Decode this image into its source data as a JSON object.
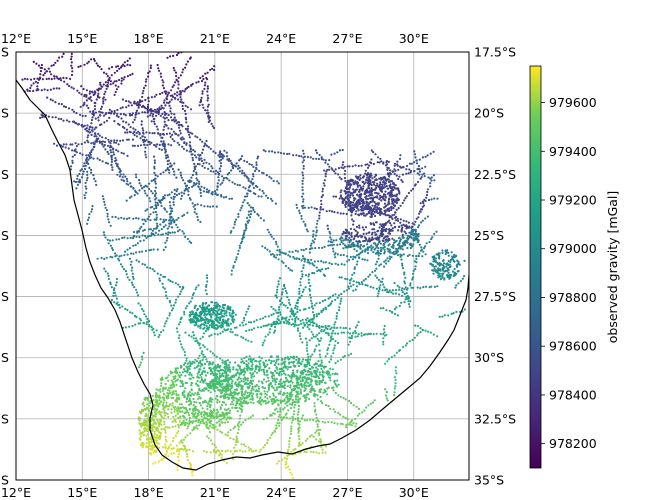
{
  "map": {
    "lon_range": [
      12,
      32.5
    ],
    "lat_range": [
      -35,
      -17.5
    ],
    "x_ticks": [
      "12°E",
      "15°E",
      "18°E",
      "21°E",
      "24°E",
      "27°E",
      "30°E"
    ],
    "x_tick_values": [
      12,
      15,
      18,
      21,
      24,
      27,
      30
    ],
    "y_ticks_right": [
      "17.5°S",
      "20°S",
      "22.5°S",
      "25°S",
      "27.5°S",
      "30°S",
      "32.5°S",
      "35°S"
    ],
    "y_tick_values": [
      -17.5,
      -20,
      -22.5,
      -25,
      -27.5,
      -30,
      -32.5,
      -35
    ],
    "y_ticks_left_visible": [
      "S",
      "S",
      "S",
      "S",
      "S",
      "S",
      "S",
      "S"
    ],
    "grid": true,
    "coastline_color": "#000000"
  },
  "colorbar": {
    "label": "observed gravity [mGal]",
    "ticks": [
      "978200",
      "978400",
      "978600",
      "978800",
      "979000",
      "979200",
      "979400",
      "979600"
    ],
    "tick_values": [
      978200,
      978400,
      978600,
      978800,
      979000,
      979200,
      979400,
      979600
    ],
    "range": [
      978100,
      979750
    ],
    "colormap": "viridis"
  }
}
